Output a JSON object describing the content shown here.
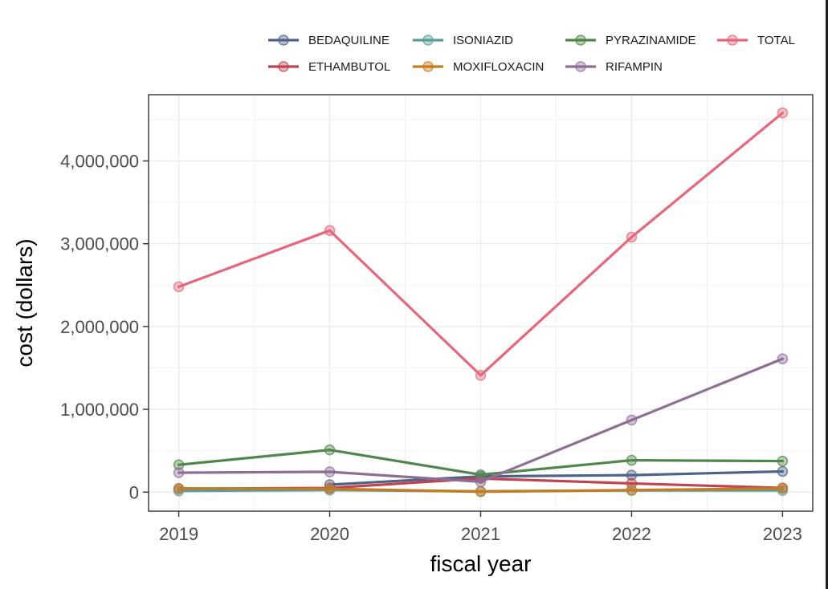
{
  "chart_data": {
    "type": "line",
    "title": "",
    "xlabel": "fiscal year",
    "ylabel": "cost (dollars)",
    "x": [
      2019,
      2020,
      2021,
      2022,
      2023
    ],
    "x_tick_labels": [
      "2019",
      "2020",
      "2021",
      "2022",
      "2023"
    ],
    "xlim": [
      2018.8,
      2023.2
    ],
    "ylim": [
      -230000,
      4800000
    ],
    "y_ticks": [
      0,
      1000000,
      2000000,
      3000000,
      4000000
    ],
    "y_tick_labels": [
      "0",
      "1,000,000",
      "2,000,000",
      "3,000,000",
      "4,000,000"
    ],
    "grid": true,
    "legend_position": "top",
    "series": [
      {
        "name": "BEDAQUILINE",
        "color": "#4e6389",
        "values": [
          null,
          90000,
          190000,
          205000,
          250000
        ]
      },
      {
        "name": "ETHAMBUTOL",
        "color": "#c0434f",
        "values": [
          40000,
          50000,
          165000,
          105000,
          50000
        ]
      },
      {
        "name": "ISONIAZID",
        "color": "#5a9e9a",
        "values": [
          15000,
          25000,
          10000,
          20000,
          20000
        ]
      },
      {
        "name": "MOXIFLOXACIN",
        "color": "#c87b1e",
        "values": [
          45000,
          40000,
          5000,
          25000,
          45000
        ]
      },
      {
        "name": "PYRAZINAMIDE",
        "color": "#4f874a",
        "values": [
          330000,
          510000,
          210000,
          385000,
          375000
        ]
      },
      {
        "name": "RIFAMPIN",
        "color": "#8f6e96",
        "values": [
          235000,
          245000,
          125000,
          870000,
          1610000
        ]
      },
      {
        "name": "TOTAL",
        "color": "#e7677a",
        "values": [
          2480000,
          3160000,
          1410000,
          3080000,
          4580000
        ]
      }
    ],
    "legend_layout": [
      [
        "BEDAQUILINE",
        "ISONIAZID",
        "PYRAZINAMIDE",
        "TOTAL"
      ],
      [
        "ETHAMBUTOL",
        "MOXIFLOXACIN",
        "RIFAMPIN"
      ]
    ]
  }
}
